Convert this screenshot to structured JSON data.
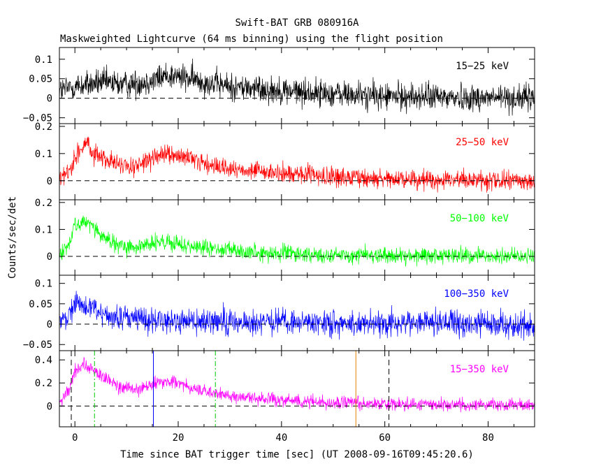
{
  "title": "Swift-BAT GRB 080916A",
  "subtitle": "Maskweighted Lightcurve (64 ms binning) using the flight position",
  "xlabel": "Time since BAT trigger time [sec] (UT 2008-09-16T09:45:20.6)",
  "ylabel": "Counts/sec/det",
  "chart_data": {
    "type": "line",
    "title": "Swift-BAT GRB 080916A",
    "subtitle": "Maskweighted Lightcurve (64 ms binning) using the flight position",
    "xlabel": "Time since BAT trigger time [sec] (UT 2008-09-16T09:45:20.6)",
    "ylabel": "Counts/sec/det",
    "xlim": [
      -3,
      89
    ],
    "xticks": [
      0,
      20,
      40,
      60,
      80
    ],
    "xtick_labels": [
      "0",
      "20",
      "40",
      "60",
      "80"
    ],
    "bin_seconds": 0.064,
    "panels": [
      {
        "name": "15-25 keV",
        "label": "15−25 keV",
        "color": "#000000",
        "ylim": [
          -0.065,
          0.13
        ],
        "yticks": [
          -0.05,
          0,
          0.05,
          0.1
        ],
        "ytick_labels": [
          "−0.05",
          "0",
          "0.05",
          "0.1"
        ],
        "noise": 0.025,
        "profile": [
          [
            -3,
            0.02
          ],
          [
            0,
            0.03
          ],
          [
            5,
            0.04
          ],
          [
            10,
            0.035
          ],
          [
            15,
            0.045
          ],
          [
            18,
            0.06
          ],
          [
            22,
            0.05
          ],
          [
            30,
            0.03
          ],
          [
            45,
            0.015
          ],
          [
            60,
            0.005
          ],
          [
            89,
            0.0
          ]
        ]
      },
      {
        "name": "25-50 keV",
        "label": "25−50 keV",
        "color": "#ff0000",
        "ylim": [
          -0.07,
          0.21
        ],
        "yticks": [
          0,
          0.1,
          0.2
        ],
        "ytick_labels": [
          "0",
          "0.1",
          "0.2"
        ],
        "noise": 0.025,
        "profile": [
          [
            -3,
            0.0
          ],
          [
            -1,
            0.04
          ],
          [
            1,
            0.12
          ],
          [
            2,
            0.13
          ],
          [
            4,
            0.1
          ],
          [
            8,
            0.06
          ],
          [
            12,
            0.05
          ],
          [
            16,
            0.09
          ],
          [
            19,
            0.095
          ],
          [
            24,
            0.07
          ],
          [
            30,
            0.04
          ],
          [
            45,
            0.02
          ],
          [
            60,
            0.005
          ],
          [
            89,
            0.0
          ]
        ]
      },
      {
        "name": "50-100 keV",
        "label": "50−100 keV",
        "color": "#00ff00",
        "ylim": [
          -0.07,
          0.21
        ],
        "yticks": [
          0,
          0.1,
          0.2
        ],
        "ytick_labels": [
          "0",
          "0.1",
          "0.2"
        ],
        "noise": 0.022,
        "profile": [
          [
            -3,
            0.0
          ],
          [
            -1,
            0.05
          ],
          [
            0,
            0.12
          ],
          [
            2,
            0.13
          ],
          [
            4,
            0.1
          ],
          [
            7,
            0.05
          ],
          [
            10,
            0.03
          ],
          [
            16,
            0.05
          ],
          [
            20,
            0.045
          ],
          [
            25,
            0.03
          ],
          [
            35,
            0.015
          ],
          [
            50,
            0.005
          ],
          [
            89,
            0.0
          ]
        ]
      },
      {
        "name": "100-350 keV",
        "label": "100−350 keV",
        "color": "#0000ff",
        "ylim": [
          -0.065,
          0.12
        ],
        "yticks": [
          -0.05,
          0,
          0.05,
          0.1
        ],
        "ytick_labels": [
          "−0.05",
          "0",
          "0.05",
          "0.1"
        ],
        "noise": 0.022,
        "profile": [
          [
            -3,
            0.0
          ],
          [
            -1,
            0.03
          ],
          [
            0,
            0.05
          ],
          [
            3,
            0.04
          ],
          [
            8,
            0.015
          ],
          [
            15,
            0.01
          ],
          [
            30,
            0.005
          ],
          [
            89,
            0.0
          ]
        ]
      },
      {
        "name": "15-350 keV",
        "label": "15−350 keV",
        "color": "#ff00ff",
        "ylim": [
          -0.18,
          0.48
        ],
        "yticks": [
          0,
          0.2,
          0.4
        ],
        "ytick_labels": [
          "0",
          "0.2",
          "0.4"
        ],
        "noise": 0.04,
        "profile": [
          [
            -3,
            0.02
          ],
          [
            -1,
            0.15
          ],
          [
            0,
            0.3
          ],
          [
            2,
            0.36
          ],
          [
            4,
            0.3
          ],
          [
            8,
            0.18
          ],
          [
            12,
            0.13
          ],
          [
            16,
            0.2
          ],
          [
            19,
            0.21
          ],
          [
            24,
            0.14
          ],
          [
            30,
            0.08
          ],
          [
            45,
            0.04
          ],
          [
            60,
            0.015
          ],
          [
            89,
            0.01
          ]
        ],
        "markers": [
          {
            "x": -0.7,
            "color": "#000000",
            "style": "dashed"
          },
          {
            "x": 3.8,
            "color": "#00cc00",
            "style": "dashdot"
          },
          {
            "x": 15.2,
            "color": "#0000ff",
            "style": "solid"
          },
          {
            "x": 27.2,
            "color": "#00cc00",
            "style": "dashdot"
          },
          {
            "x": 54.4,
            "color": "#e08000",
            "style": "solid"
          },
          {
            "x": 60.8,
            "color": "#000000",
            "style": "dashed"
          }
        ]
      }
    ]
  }
}
